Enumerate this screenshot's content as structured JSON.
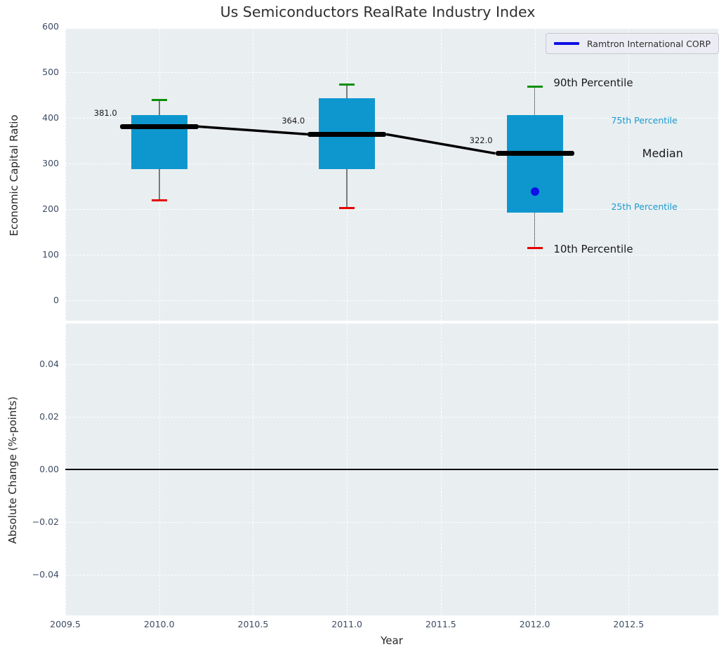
{
  "colors": {
    "panel_bg": "#e9eef0",
    "grid": "#ffffff",
    "box_fill": "#0d97ce",
    "median": "#000000",
    "whisker": "#7a7a7a",
    "cap_high": "#0a8f0a",
    "cap_low": "#e60000",
    "company": "#0f0fe8",
    "zero_line": "#000000",
    "tick_label": "#3d4c63",
    "percentile_label": "#189bd1"
  },
  "chart_data": [
    {
      "type": "box",
      "title": "Us Semiconductors RealRate Industry Index",
      "xlabel": "Year",
      "ylabel": "Economic Capital Ratio",
      "xlim": [
        2009.5,
        2012.98
      ],
      "ylim": [
        -46,
        601
      ],
      "grid": true,
      "categories": [
        2010,
        2011,
        2012
      ],
      "boxes": [
        {
          "year": 2010,
          "whisker_low": 220,
          "q1": 288,
          "median": 381,
          "q3": 406,
          "whisker_high": 440,
          "median_label": "381.0"
        },
        {
          "year": 2011,
          "whisker_low": 203,
          "q1": 288,
          "median": 364,
          "q3": 443,
          "whisker_high": 473,
          "median_label": "364.0"
        },
        {
          "year": 2012,
          "whisker_low": 115,
          "q1": 192,
          "median": 322,
          "q3": 406,
          "whisker_high": 468,
          "median_label": "322.0"
        }
      ],
      "median_trend": [
        381,
        364,
        322
      ],
      "company_series": {
        "name": "Ramtron International CORP",
        "points": [
          {
            "year": 2012,
            "value": 238
          }
        ]
      },
      "legend": {
        "label": "Ramtron International CORP",
        "position": "upper right"
      },
      "yticks": {
        "labels": [
          "0",
          "100",
          "200",
          "300",
          "400",
          "500",
          "600"
        ],
        "values": [
          0,
          100,
          200,
          300,
          400,
          500,
          600
        ]
      },
      "xticks": {
        "labels": [
          "2009.5",
          "2010.0",
          "2010.5",
          "2011.0",
          "2011.5",
          "2012.0",
          "2012.5"
        ],
        "values": [
          2009.5,
          2010,
          2010.5,
          2011,
          2011.5,
          2012,
          2012.5
        ]
      },
      "grid_y": [
        0,
        100,
        200,
        300,
        400,
        500
      ],
      "annotations": [
        {
          "text": "90th Percentile",
          "x": 2012.1,
          "y": 477,
          "color": "#1a1a1a",
          "size": 15,
          "align": "left"
        },
        {
          "text": "75th Percentile",
          "x": 2012.76,
          "y": 395,
          "color": "#189bd1",
          "size": 12.5,
          "align": "right"
        },
        {
          "text": "Median",
          "x": 2012.79,
          "y": 322,
          "color": "#1a1a1a",
          "size": 16,
          "align": "right"
        },
        {
          "text": "25th Percentile",
          "x": 2012.76,
          "y": 205,
          "color": "#189bd1",
          "size": 12.5,
          "align": "right"
        },
        {
          "text": "10th Percentile",
          "x": 2012.1,
          "y": 112,
          "color": "#1a1a1a",
          "size": 15,
          "align": "left"
        }
      ]
    },
    {
      "type": "line",
      "xlabel": "Year",
      "ylabel": "Absolute Change (%-points)",
      "ylim": [
        -0.055,
        0.055
      ],
      "series": [],
      "zero_line": 0.0,
      "yticks": {
        "labels": [
          "−0.04",
          "−0.02",
          "0.00",
          "0.02",
          "0.04"
        ],
        "values": [
          -0.04,
          -0.02,
          0,
          0.02,
          0.04
        ]
      },
      "grid_y": [
        -0.04,
        -0.02,
        0,
        0.02,
        0.04
      ]
    }
  ]
}
